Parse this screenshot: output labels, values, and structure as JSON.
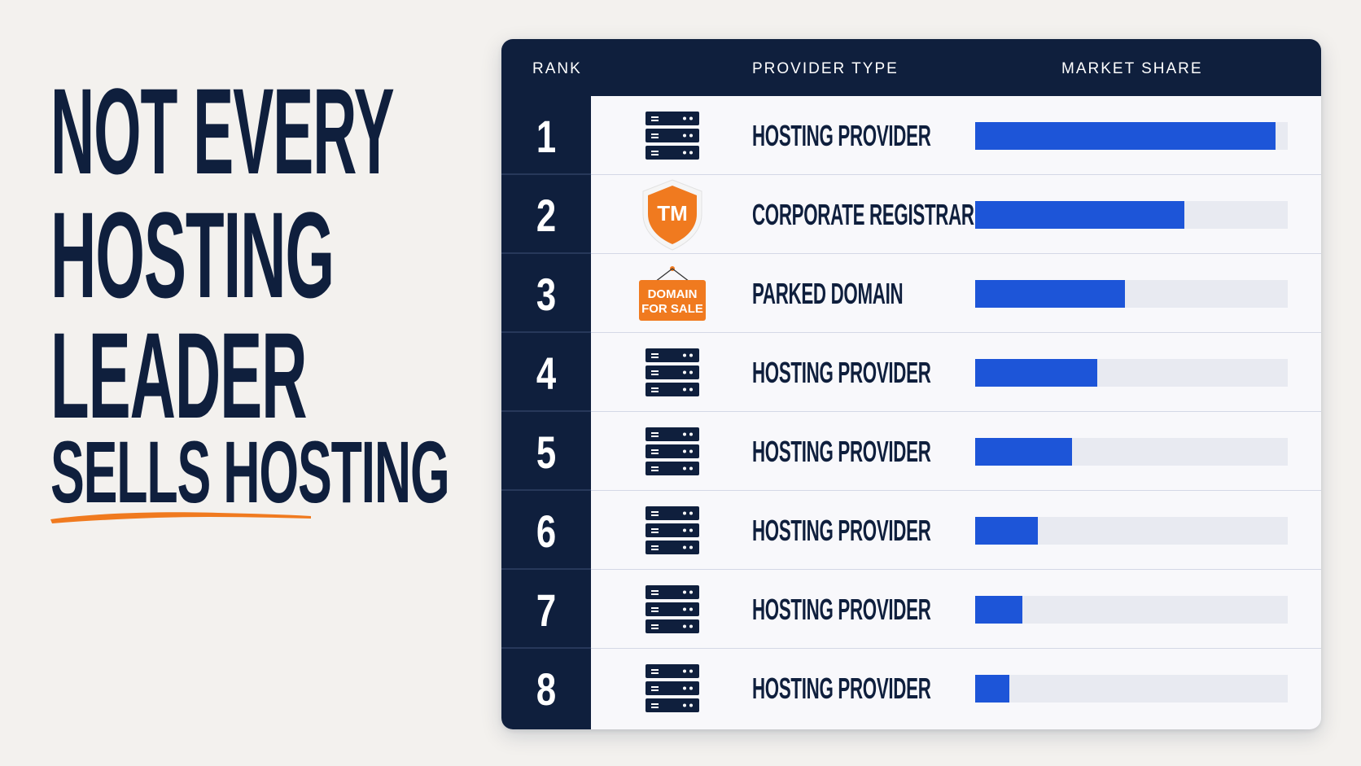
{
  "headline": {
    "lines": [
      "NOT EVERY",
      "HOSTING",
      "LEADER",
      "SELLS HOSTING"
    ],
    "underline_color": "#f07a1f"
  },
  "colors": {
    "navy": "#0f1f3d",
    "bar_blue": "#1d55d8",
    "orange": "#f07a1f"
  },
  "table": {
    "headers": {
      "rank": "RANK",
      "provider_type": "PROVIDER TYPE",
      "market_share": "MARKET SHARE"
    }
  },
  "chart_data": {
    "type": "bar",
    "orientation": "horizontal",
    "title": "NOT EVERY HOSTING LEADER SELLS HOSTING",
    "xlabel": "MARKET SHARE",
    "ylabel": "PROVIDER TYPE",
    "xlim": [
      0,
      100
    ],
    "categories": [
      "1",
      "2",
      "3",
      "4",
      "5",
      "6",
      "7",
      "8"
    ],
    "rows": [
      {
        "rank": "1",
        "provider_type": "HOSTING PROVIDER",
        "icon": "server-rack-icon",
        "share": 96
      },
      {
        "rank": "2",
        "provider_type": "CORPORATE REGISTRAR",
        "icon": "trademark-shield-icon",
        "share": 67,
        "icon_text": "TM"
      },
      {
        "rank": "3",
        "provider_type": "PARKED DOMAIN",
        "icon": "domain-for-sale-sign-icon",
        "share": 48,
        "icon_text": [
          "DOMAIN",
          "FOR SALE"
        ]
      },
      {
        "rank": "4",
        "provider_type": "HOSTING PROVIDER",
        "icon": "server-rack-icon",
        "share": 39
      },
      {
        "rank": "5",
        "provider_type": "HOSTING PROVIDER",
        "icon": "server-rack-icon",
        "share": 31
      },
      {
        "rank": "6",
        "provider_type": "HOSTING PROVIDER",
        "icon": "server-rack-icon",
        "share": 20
      },
      {
        "rank": "7",
        "provider_type": "HOSTING PROVIDER",
        "icon": "server-rack-icon",
        "share": 15
      },
      {
        "rank": "8",
        "provider_type": "HOSTING PROVIDER",
        "icon": "server-rack-icon",
        "share": 11
      }
    ]
  }
}
